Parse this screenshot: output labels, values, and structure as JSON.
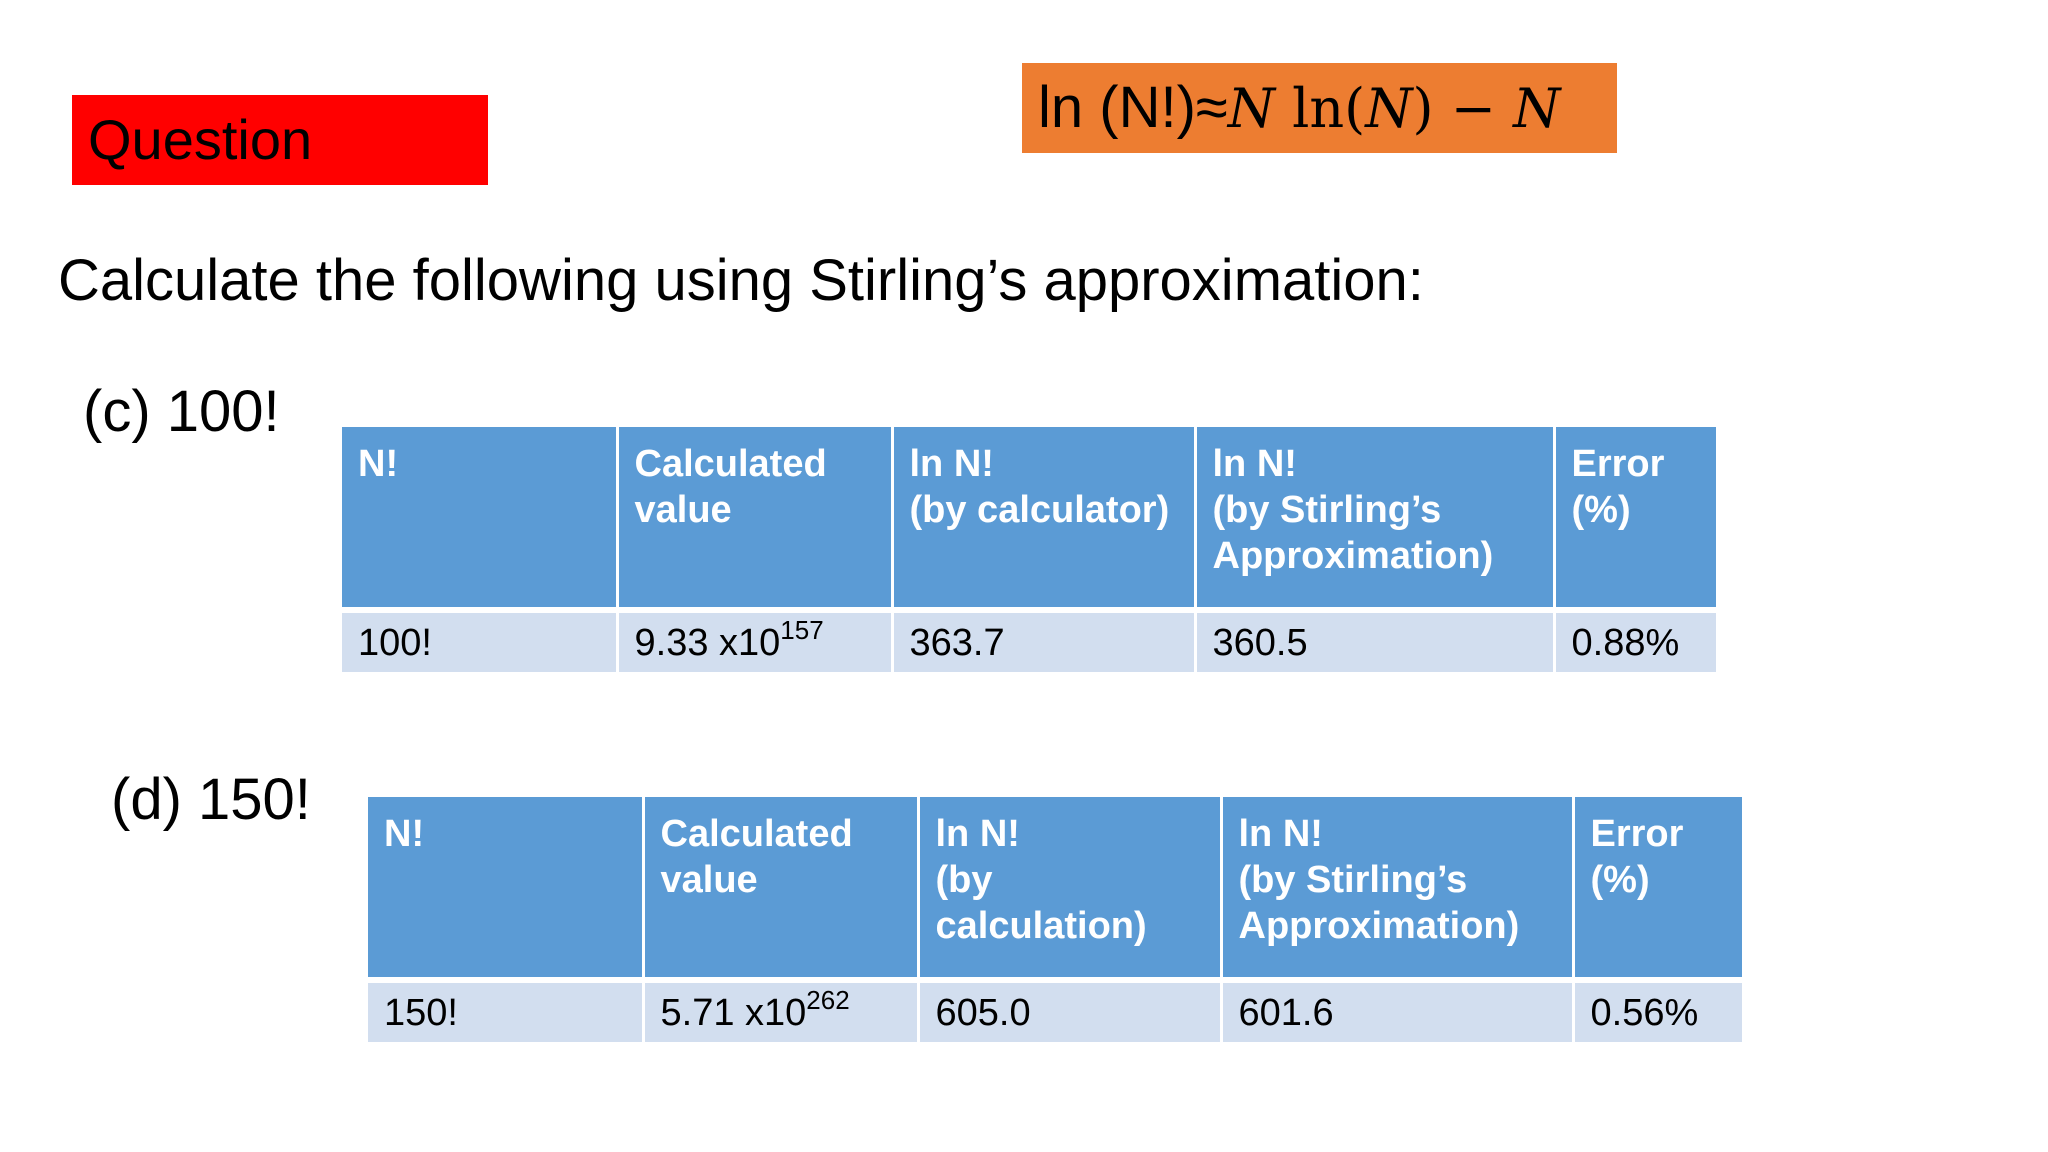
{
  "badge": {
    "label": "Question"
  },
  "formula": {
    "prefix": "ln (N!)≈",
    "var1": "N",
    "ln": " ln(",
    "var2": "N",
    "close": ") − ",
    "var3": "N"
  },
  "heading": "Calculate the following using Stirling’s approximation:",
  "part_c": {
    "label": "(c) 100!",
    "headers": [
      "N!",
      "Calculated\nvalue",
      "ln N!\n(by calculator)",
      "ln N!\n(by Stirling’s\nApproximation)",
      "Error\n(%)"
    ],
    "row": {
      "n": "100!",
      "value_mantissa": "9.33 x10",
      "value_exponent": "157",
      "ln_calc": "363.7",
      "ln_stirling": "360.5",
      "error": "0.88%"
    }
  },
  "part_d": {
    "label": "(d) 150!",
    "headers": [
      "N!",
      "Calculated\nvalue",
      "ln N!\n(by\ncalculation)",
      "ln N!\n(by Stirling’s\nApproximation)",
      "Error\n(%)"
    ],
    "row": {
      "n": "150!",
      "value_mantissa": "5.71 x10",
      "value_exponent": "262",
      "ln_calc": "605.0",
      "ln_stirling": "601.6",
      "error": "0.56%"
    }
  }
}
